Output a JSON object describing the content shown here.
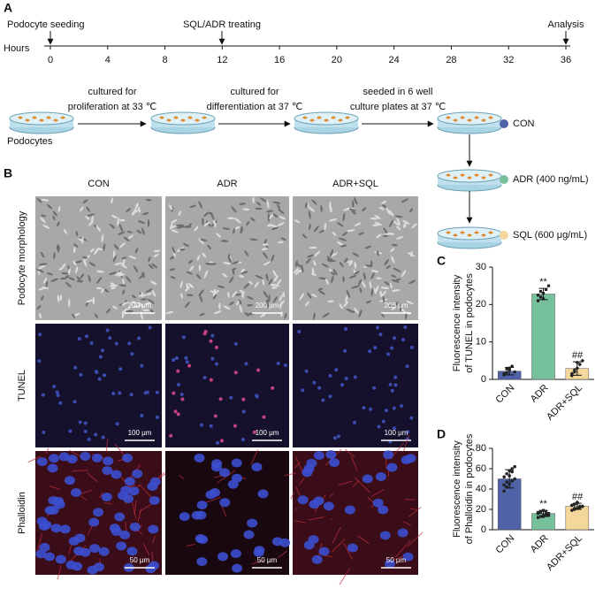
{
  "panels": {
    "a": "A",
    "b": "B",
    "c": "C",
    "d": "D"
  },
  "timeline": {
    "events": [
      "Podocyte seeding",
      "SQL/ADR treating",
      "Analysis"
    ],
    "axis_label": "Hours",
    "ticks": [
      0,
      4,
      8,
      12,
      16,
      20,
      24,
      28,
      32,
      36
    ]
  },
  "workflow": {
    "start": "Podocytes",
    "steps": [
      [
        "cultured for",
        "proliferation at 33 ℃"
      ],
      [
        "cultured for",
        "differentiation at 37 ℃"
      ],
      [
        "seeded in 6 well",
        "culture plates at 37 ℃"
      ]
    ]
  },
  "groups": [
    {
      "name": "CON",
      "color": "#4f62a8"
    },
    {
      "name": "ADR (400 ng/mL)",
      "color": "#76c09b"
    },
    {
      "name": "SQL (600 μg/mL)",
      "color": "#f4d79a"
    }
  ],
  "micrographs": {
    "columns": [
      "CON",
      "ADR",
      "ADR+SQL"
    ],
    "rows": [
      "Podocyte morphology",
      "TUNEL",
      "Phalloidin"
    ],
    "scale_bars": [
      "200 μm",
      "100 μm",
      "50 μm"
    ]
  },
  "chart_data": [
    {
      "type": "bar",
      "y_label": [
        "Fluorescence intensity",
        "of TUNEL in podocytes"
      ],
      "categories": [
        "CON",
        "ADR",
        "ADR+SQL"
      ],
      "values": [
        2.2,
        22.8,
        2.9
      ],
      "errors": [
        1.0,
        1.5,
        1.8
      ],
      "colors": [
        "#4f62a8",
        "#76c09b",
        "#f4d79a"
      ],
      "points": [
        [
          1.2,
          1.8,
          2.5,
          3.5,
          2.0,
          1.5,
          2.8,
          3.0
        ],
        [
          21,
          22,
          23,
          24,
          25,
          22.5,
          23.5,
          21.5
        ],
        [
          1,
          2,
          3,
          4,
          5,
          1.5,
          2.5,
          4.5
        ]
      ],
      "annotations": [
        null,
        "**",
        "##"
      ],
      "ylim": [
        0,
        30
      ],
      "yticks": [
        0,
        10,
        20,
        30
      ]
    },
    {
      "type": "bar",
      "y_label": [
        "Fluorescence intensity",
        "of Phalloidin in podocytes"
      ],
      "categories": [
        "CON",
        "ADR",
        "ADR+SQL"
      ],
      "values": [
        50,
        16,
        23
      ],
      "errors": [
        9,
        3,
        3
      ],
      "colors": [
        "#4f62a8",
        "#76c09b",
        "#f4d79a"
      ],
      "points": [
        [
          38,
          42,
          45,
          48,
          50,
          52,
          55,
          58,
          60,
          62,
          44,
          47,
          53,
          57
        ],
        [
          12,
          13,
          14,
          15,
          16,
          17,
          18,
          19,
          15,
          14,
          16,
          17,
          13,
          18
        ],
        [
          19,
          20,
          21,
          22,
          23,
          24,
          25,
          26,
          22,
          23,
          24,
          21,
          27,
          23
        ]
      ],
      "annotations": [
        null,
        "**",
        "##"
      ],
      "ylim": [
        0,
        80
      ],
      "yticks": [
        0,
        20,
        40,
        60,
        80
      ]
    }
  ]
}
